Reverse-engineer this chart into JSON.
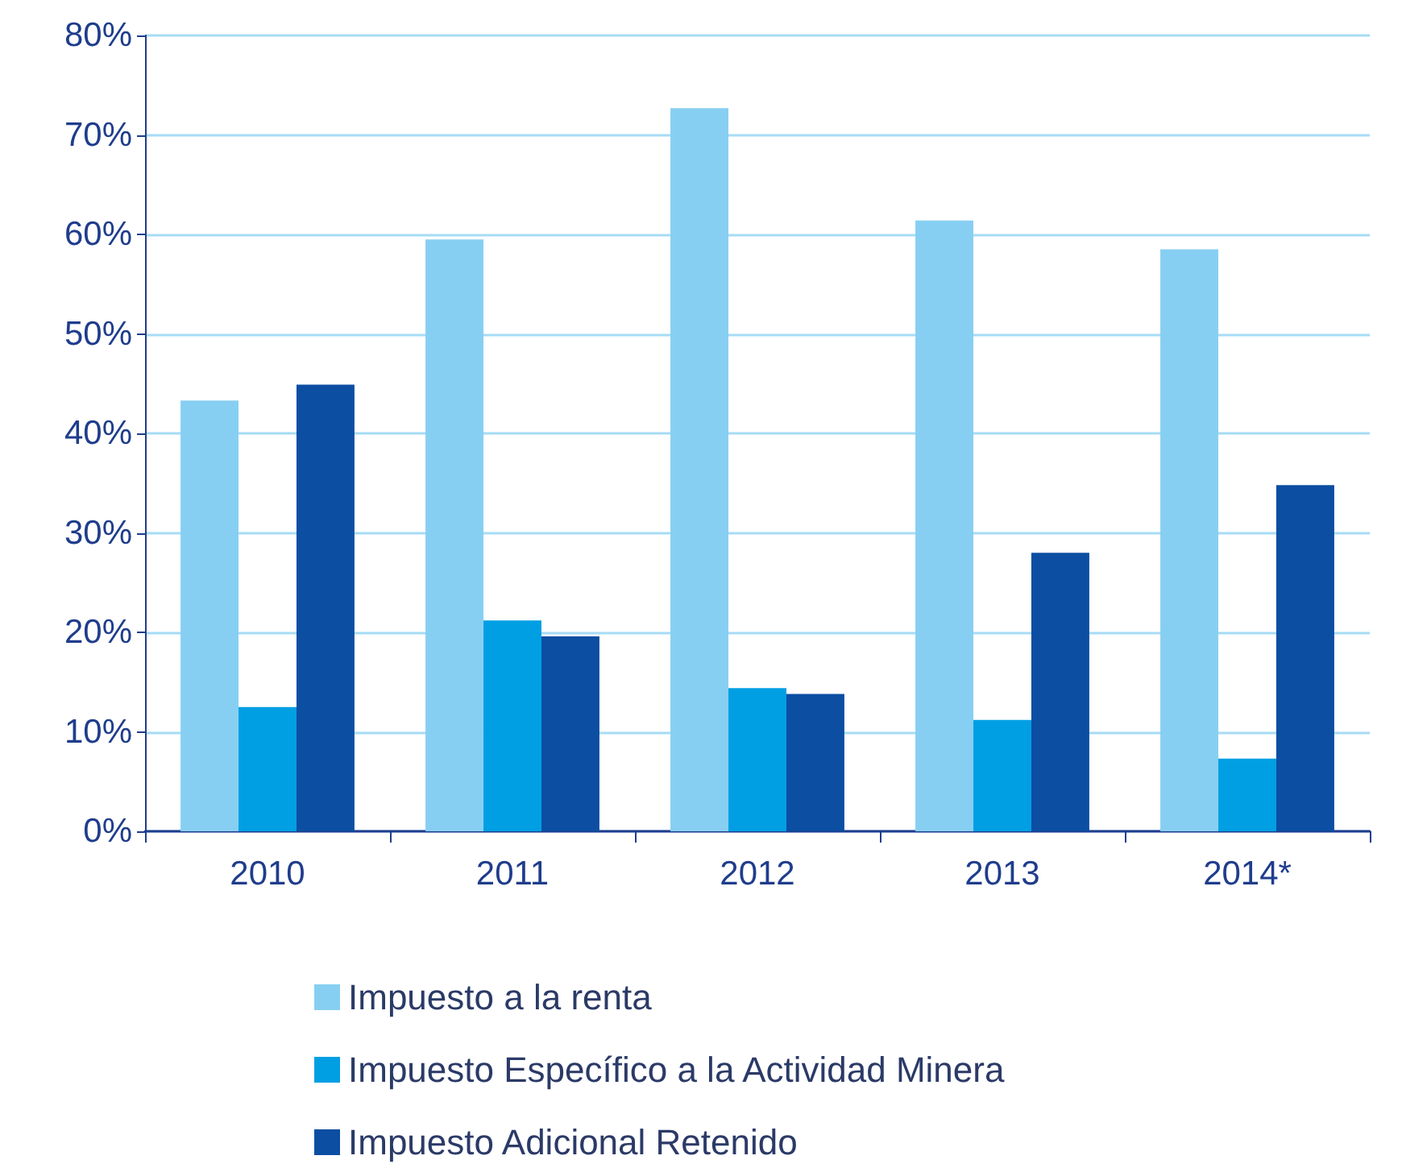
{
  "chart_data": {
    "type": "bar",
    "categories": [
      "2010",
      "2011",
      "2012",
      "2013",
      "2014*"
    ],
    "series": [
      {
        "name": "Impuesto a la renta",
        "color": "#87cff2",
        "values": [
          43.3,
          59.5,
          72.7,
          61.4,
          58.5
        ]
      },
      {
        "name": "Impuesto Específico a la Actividad Minera",
        "color": "#009fe3",
        "values": [
          12.5,
          21.2,
          14.4,
          11.2,
          7.3
        ]
      },
      {
        "name": "Impuesto Adicional Retenido",
        "color": "#0b4ea2",
        "values": [
          44.9,
          19.6,
          13.8,
          28.0,
          34.8
        ]
      }
    ],
    "ylim": [
      0,
      80
    ],
    "yticks": [
      {
        "value": 0,
        "label": "0%"
      },
      {
        "value": 10,
        "label": "10%"
      },
      {
        "value": 20,
        "label": "20%"
      },
      {
        "value": 30,
        "label": "30%"
      },
      {
        "value": 40,
        "label": "40%"
      },
      {
        "value": 50,
        "label": "50%"
      },
      {
        "value": 60,
        "label": "60%"
      },
      {
        "value": 70,
        "label": "70%"
      },
      {
        "value": 80,
        "label": "80%"
      }
    ],
    "grid": "y",
    "legend": "bottom"
  }
}
